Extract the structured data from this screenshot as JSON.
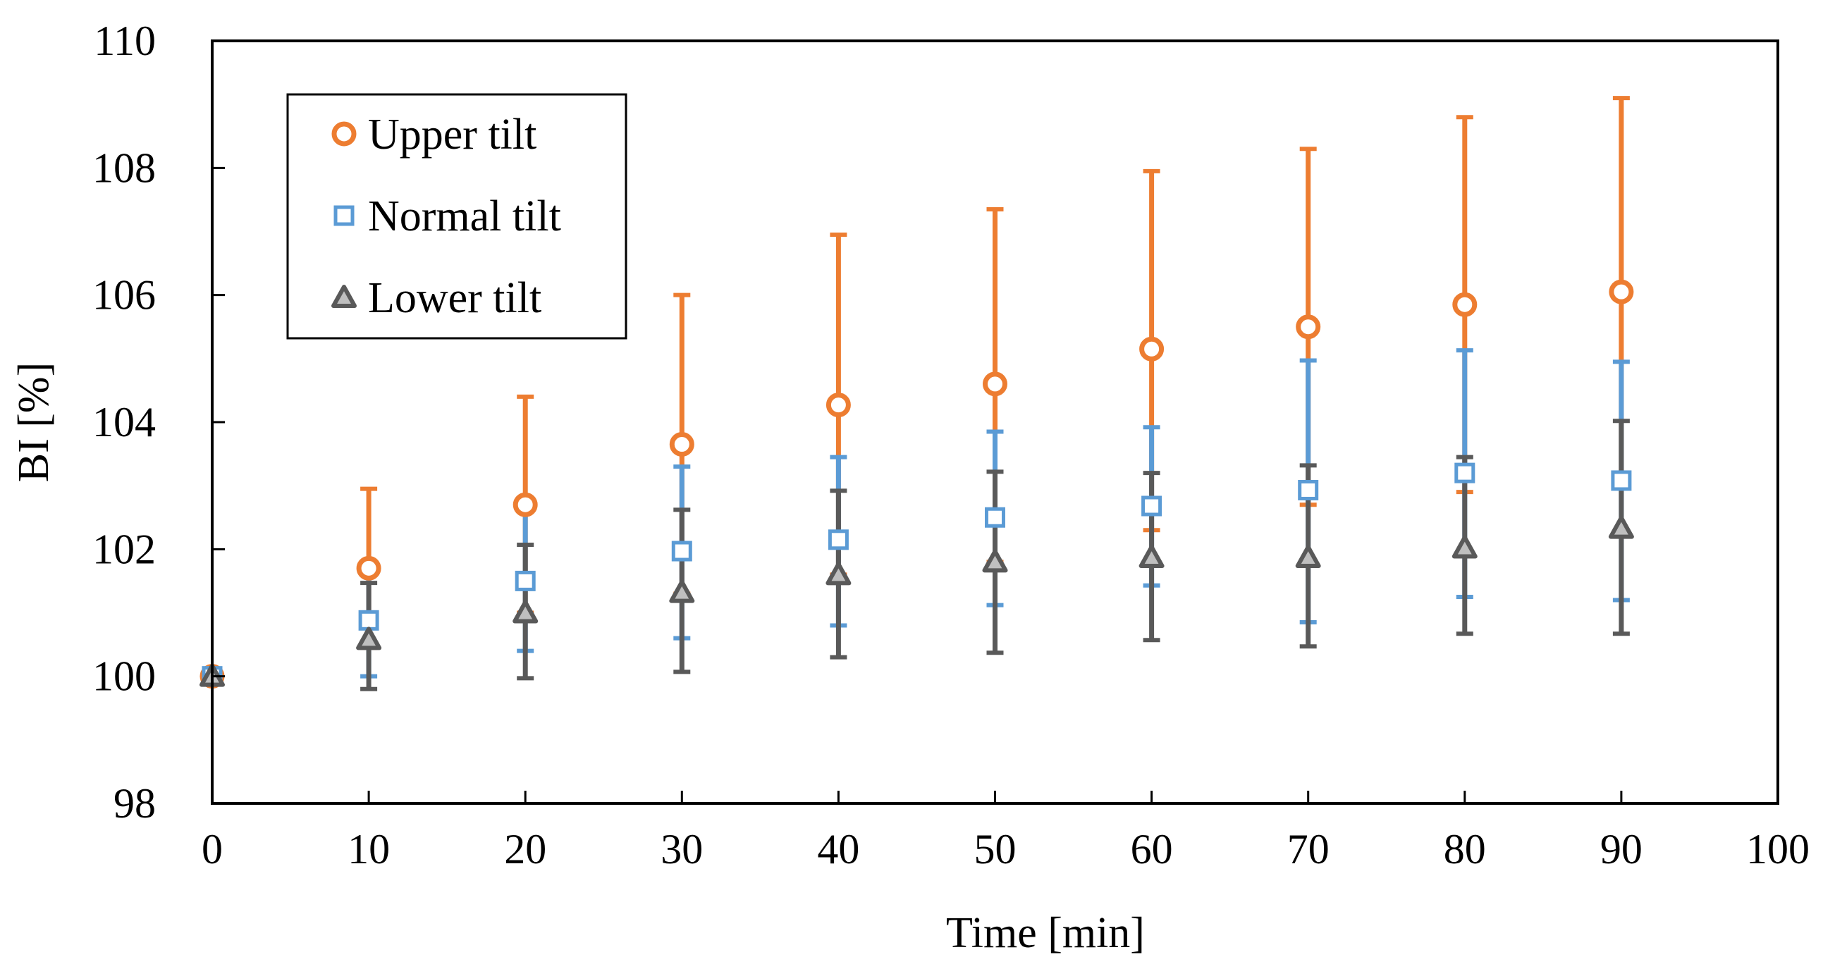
{
  "chart_data": {
    "type": "scatter",
    "title": "",
    "xlabel": "Time [min]",
    "ylabel": "BI [%]",
    "xlim": [
      0,
      100
    ],
    "ylim": [
      98,
      110
    ],
    "xticks": [
      0,
      10,
      20,
      30,
      40,
      50,
      60,
      70,
      80,
      90,
      100
    ],
    "yticks": [
      98,
      100,
      102,
      104,
      106,
      108,
      110
    ],
    "grid": false,
    "legend": {
      "position": "top-left"
    },
    "x": [
      0,
      10,
      20,
      30,
      40,
      50,
      60,
      70,
      80,
      90
    ],
    "series": [
      {
        "name": "Upper tilt",
        "marker": "circle",
        "color": "#ED7D31",
        "values": [
          100.0,
          101.7,
          102.7,
          103.65,
          104.27,
          104.6,
          105.15,
          105.5,
          105.85,
          106.05
        ],
        "err_low": [
          100.0,
          100.45,
          101.0,
          101.3,
          101.6,
          101.8,
          102.3,
          102.7,
          102.9,
          103.0
        ],
        "err_high": [
          100.0,
          102.95,
          104.4,
          106.0,
          106.95,
          107.35,
          107.95,
          108.3,
          108.8,
          109.1
        ]
      },
      {
        "name": "Normal tilt",
        "marker": "square",
        "color": "#5B9BD5",
        "values": [
          100.0,
          100.88,
          101.5,
          101.97,
          102.15,
          102.5,
          102.68,
          102.93,
          103.2,
          103.08
        ],
        "err_low": [
          100.0,
          100.0,
          100.4,
          100.6,
          100.8,
          101.12,
          101.43,
          100.85,
          101.25,
          101.2
        ],
        "err_high": [
          100.0,
          101.75,
          102.6,
          103.3,
          103.45,
          103.85,
          103.92,
          104.97,
          105.13,
          104.95
        ]
      },
      {
        "name": "Lower tilt",
        "marker": "triangle",
        "color": "#595959",
        "values": [
          100.0,
          100.58,
          101.0,
          101.32,
          101.6,
          101.8,
          101.87,
          101.87,
          102.02,
          102.33
        ],
        "err_low": [
          100.0,
          99.8,
          99.97,
          100.07,
          100.3,
          100.37,
          100.57,
          100.47,
          100.67,
          100.67
        ],
        "err_high": [
          100.0,
          101.47,
          102.07,
          102.62,
          102.92,
          103.22,
          103.2,
          103.32,
          103.45,
          104.02
        ]
      }
    ]
  }
}
